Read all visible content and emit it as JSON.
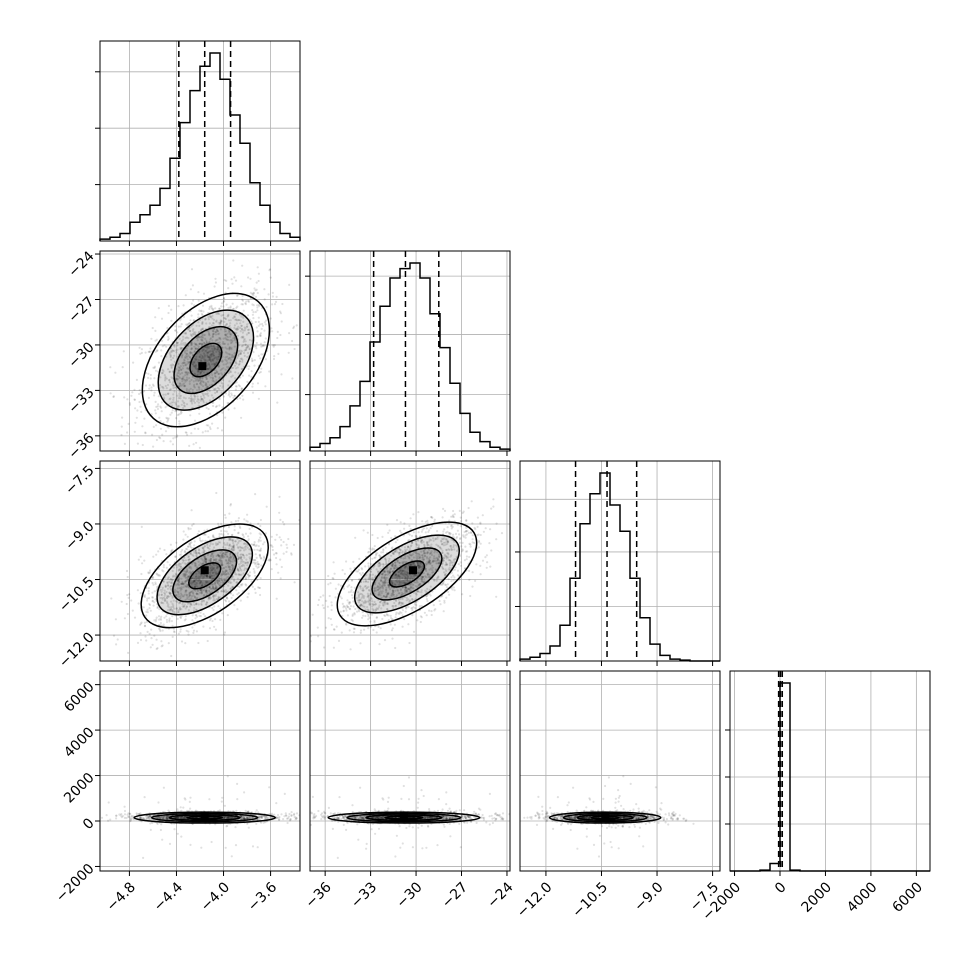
{
  "chart_data": {
    "type": "corner",
    "parameters": [
      {
        "range": [
          -5.05,
          -3.35
        ],
        "ticks": [
          -4.8,
          -4.4,
          -4.0,
          -3.6
        ],
        "tick_labels": [
          "−4.8",
          "−4.4",
          "−4.0",
          "−3.6"
        ],
        "quantiles": [
          -4.38,
          -4.16,
          -3.94
        ],
        "hist_edges": [
          -5.05,
          -4.965,
          -4.88,
          -4.795,
          -4.71,
          -4.625,
          -4.54,
          -4.455,
          -4.37,
          -4.285,
          -4.2,
          -4.115,
          -4.03,
          -3.945,
          -3.86,
          -3.775,
          -3.69,
          -3.605,
          -3.52,
          -3.435,
          -3.35
        ],
        "hist_counts": [
          0.01,
          0.02,
          0.04,
          0.1,
          0.14,
          0.19,
          0.28,
          0.44,
          0.63,
          0.8,
          0.93,
          1.0,
          0.86,
          0.67,
          0.52,
          0.31,
          0.19,
          0.1,
          0.04,
          0.02
        ],
        "hist_grid_fractions": [
          0.3,
          0.6,
          0.9
        ]
      },
      {
        "range": [
          -37.0,
          -23.8
        ],
        "ticks": [
          -36,
          -33,
          -30,
          -27,
          -24
        ],
        "tick_labels": [
          "−36",
          "−33",
          "−30",
          "−27",
          "−24"
        ],
        "quantiles": [
          -32.8,
          -30.7,
          -28.5
        ],
        "hist_edges": [
          -37.0,
          -36.34,
          -35.68,
          -35.02,
          -34.36,
          -33.7,
          -33.04,
          -32.38,
          -31.72,
          -31.06,
          -30.4,
          -29.74,
          -29.08,
          -28.42,
          -27.76,
          -27.1,
          -26.44,
          -25.78,
          -25.12,
          -24.46,
          -23.8
        ],
        "hist_counts": [
          0.02,
          0.04,
          0.07,
          0.13,
          0.24,
          0.37,
          0.58,
          0.77,
          0.92,
          0.97,
          1.0,
          0.92,
          0.73,
          0.55,
          0.36,
          0.2,
          0.1,
          0.05,
          0.02,
          0.01
        ],
        "hist_grid_fractions": [
          0.3,
          0.62,
          0.93
        ]
      },
      {
        "range": [
          -12.7,
          -7.3
        ],
        "ticks": [
          -12.0,
          -10.5,
          -9.0,
          -7.5
        ],
        "tick_labels": [
          "−12.0",
          "−10.5",
          "−9.0",
          "−7.5"
        ],
        "quantiles": [
          -11.2,
          -10.35,
          -9.55
        ],
        "hist_edges": [
          -12.7,
          -12.43,
          -12.16,
          -11.89,
          -11.62,
          -11.35,
          -11.08,
          -10.81,
          -10.54,
          -10.27,
          -10.0,
          -9.73,
          -9.46,
          -9.19,
          -8.92,
          -8.65,
          -8.38,
          -8.11,
          -7.84,
          -7.57,
          -7.3
        ],
        "hist_counts": [
          0.01,
          0.02,
          0.04,
          0.08,
          0.19,
          0.44,
          0.73,
          0.89,
          1.0,
          0.83,
          0.69,
          0.44,
          0.23,
          0.09,
          0.03,
          0.01,
          0.005,
          0.0,
          0.0,
          0.0
        ],
        "hist_grid_fractions": [
          0.29,
          0.58,
          0.86
        ]
      },
      {
        "range": [
          -2200,
          6600
        ],
        "ticks": [
          -2000,
          0,
          2000,
          4000,
          6000
        ],
        "tick_labels": [
          "−2000",
          "0",
          "2000",
          "4000",
          "6000"
        ],
        "y_tick_labels": [
          "−2000",
          "0",
          "2000",
          "4000",
          "6000"
        ],
        "quantiles": [
          -60,
          20,
          100
        ],
        "hist_edges": [
          -2200,
          -1760,
          -1320,
          -880,
          -440,
          0,
          440,
          880,
          1320,
          1760,
          2200,
          2640,
          3080,
          3520,
          3960,
          4400,
          4840,
          5280,
          5720,
          6160,
          6600
        ],
        "hist_counts": [
          0,
          0,
          0,
          0.005,
          0.04,
          1.0,
          0.005,
          0,
          0,
          0,
          0,
          0,
          0,
          0,
          0,
          0,
          0,
          0,
          0,
          0
        ],
        "hist_grid_fractions": [
          0.25,
          0.5,
          0.75
        ]
      }
    ],
    "pairs": [
      {
        "row": 1,
        "col": 0,
        "center": [
          -4.15,
          -31.0
        ],
        "sd": [
          0.27,
          2.2
        ],
        "corr": 0.45,
        "density_peak": [
          -4.18,
          -31.4
        ],
        "points": 1600
      },
      {
        "row": 2,
        "col": 0,
        "center": [
          -4.16,
          -10.4
        ],
        "sd": [
          0.27,
          0.7
        ],
        "corr": 0.55,
        "density_peak": [
          -4.16,
          -10.25
        ],
        "points": 1600
      },
      {
        "row": 2,
        "col": 1,
        "center": [
          -30.6,
          -10.35
        ],
        "sd": [
          2.3,
          0.7
        ],
        "corr": 0.6,
        "density_peak": [
          -30.2,
          -10.25
        ],
        "points": 1600
      },
      {
        "row": 3,
        "col": 0,
        "center": [
          -4.16,
          150
        ],
        "sd": [
          0.3,
          120
        ],
        "corr": 0.0,
        "density_peak": [
          -4.16,
          200
        ],
        "points": 1500
      },
      {
        "row": 3,
        "col": 1,
        "center": [
          -30.8,
          150
        ],
        "sd": [
          2.5,
          120
        ],
        "corr": 0.0,
        "density_peak": [
          -30.8,
          200
        ],
        "points": 1500
      },
      {
        "row": 3,
        "col": 2,
        "center": [
          -10.4,
          150
        ],
        "sd": [
          0.75,
          120
        ],
        "corr": 0.0,
        "density_peak": [
          -10.4,
          200
        ],
        "points": 1500
      }
    ],
    "contour_levels_sigma": [
      0.5,
      1.0,
      1.5,
      2.0
    ],
    "grid": true
  }
}
